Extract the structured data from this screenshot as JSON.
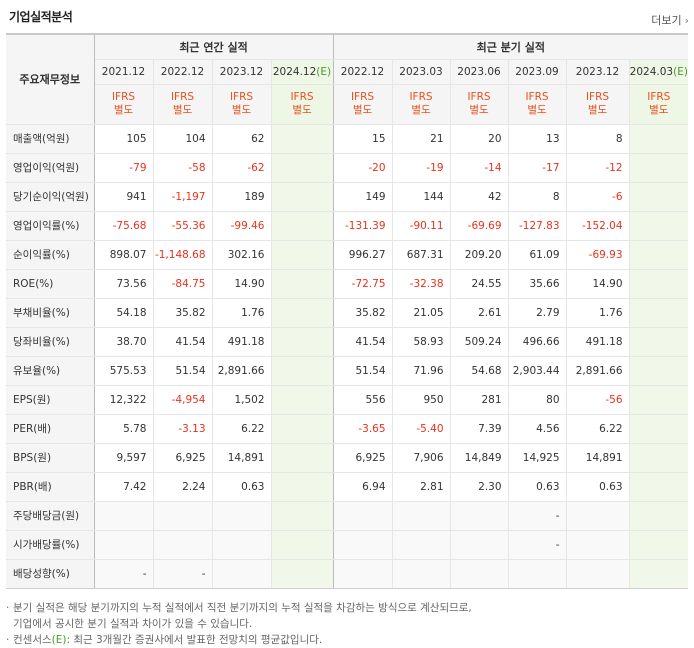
{
  "header": {
    "title": "기업실적분석",
    "more_label": "더보기",
    "more_chevron": "›"
  },
  "table": {
    "row_label_header": "주요재무정보",
    "annual_group": "최근 연간 실적",
    "quarter_group": "최근 분기 실적",
    "annual_periods": [
      "2021.12",
      "2022.12",
      "2023.12",
      "2024.12(E)"
    ],
    "quarter_periods": [
      "2022.12",
      "2023.03",
      "2023.06",
      "2023.09",
      "2023.12",
      "2024.03(E)"
    ],
    "ifrs_top": "IFRS",
    "ifrs_bottom": "별도",
    "rows": [
      {
        "label": "매출액(억원)",
        "a": [
          "105",
          "104",
          "62",
          ""
        ],
        "q": [
          "15",
          "21",
          "20",
          "13",
          "8",
          ""
        ]
      },
      {
        "label": "영업이익(억원)",
        "a": [
          "-79",
          "-58",
          "-62",
          ""
        ],
        "q": [
          "-20",
          "-19",
          "-14",
          "-17",
          "-12",
          ""
        ]
      },
      {
        "label": "당기순이익(억원)",
        "a": [
          "941",
          "-1,197",
          "189",
          ""
        ],
        "q": [
          "149",
          "144",
          "42",
          "8",
          "-6",
          ""
        ]
      },
      {
        "label": "영업이익률(%)",
        "a": [
          "-75.68",
          "-55.36",
          "-99.46",
          ""
        ],
        "q": [
          "-131.39",
          "-90.11",
          "-69.69",
          "-127.83",
          "-152.04",
          ""
        ]
      },
      {
        "label": "순이익률(%)",
        "a": [
          "898.07",
          "-1,148.68",
          "302.16",
          ""
        ],
        "q": [
          "996.27",
          "687.31",
          "209.20",
          "61.09",
          "-69.93",
          ""
        ]
      },
      {
        "label": "ROE(%)",
        "a": [
          "73.56",
          "-84.75",
          "14.90",
          ""
        ],
        "q": [
          "-72.75",
          "-32.38",
          "24.55",
          "35.66",
          "14.90",
          ""
        ]
      },
      {
        "label": "부채비율(%)",
        "a": [
          "54.18",
          "35.82",
          "1.76",
          ""
        ],
        "q": [
          "35.82",
          "21.05",
          "2.61",
          "2.79",
          "1.76",
          ""
        ]
      },
      {
        "label": "당좌비율(%)",
        "a": [
          "38.70",
          "41.54",
          "491.18",
          ""
        ],
        "q": [
          "41.54",
          "58.93",
          "509.24",
          "496.66",
          "491.18",
          ""
        ]
      },
      {
        "label": "유보율(%)",
        "a": [
          "575.53",
          "51.54",
          "2,891.66",
          ""
        ],
        "q": [
          "51.54",
          "71.96",
          "54.68",
          "2,903.44",
          "2,891.66",
          ""
        ]
      },
      {
        "label": "EPS(원)",
        "a": [
          "12,322",
          "-4,954",
          "1,502",
          ""
        ],
        "q": [
          "556",
          "950",
          "281",
          "80",
          "-56",
          ""
        ]
      },
      {
        "label": "PER(배)",
        "a": [
          "5.78",
          "-3.13",
          "6.22",
          ""
        ],
        "q": [
          "-3.65",
          "-5.40",
          "7.39",
          "4.56",
          "6.22",
          ""
        ]
      },
      {
        "label": "BPS(원)",
        "a": [
          "9,597",
          "6,925",
          "14,891",
          ""
        ],
        "q": [
          "6,925",
          "7,906",
          "14,849",
          "14,925",
          "14,891",
          ""
        ]
      },
      {
        "label": "PBR(배)",
        "a": [
          "7.42",
          "2.24",
          "0.63",
          ""
        ],
        "q": [
          "6.94",
          "2.81",
          "2.30",
          "0.63",
          "0.63",
          ""
        ]
      },
      {
        "label": "주당배당금(원)",
        "a": [
          "",
          "",
          "",
          ""
        ],
        "q": [
          "",
          "",
          "",
          "-",
          "",
          ""
        ]
      },
      {
        "label": "시가배당률(%)",
        "a": [
          "",
          "",
          "",
          ""
        ],
        "q": [
          "",
          "",
          "",
          "-",
          "",
          ""
        ]
      },
      {
        "label": "배당성향(%)",
        "a": [
          "-",
          "-",
          "",
          ""
        ],
        "q": [
          "",
          "",
          "",
          "",
          "",
          ""
        ]
      }
    ]
  },
  "notes": {
    "bullet": "·",
    "line1": "분기 실적은 해당 분기까지의 누적 실적에서 직전 분기까지의 누적 실적을 차감하는 방식으로 계산되므로,",
    "line2": "기업에서 공시한 분기 실적과 차이가 있을 수 있습니다.",
    "line3_pre": "컨센서스",
    "line3_e": "(E)",
    "line3_post": ": 최근 3개월간 증권사에서 발표한 전망치의 평균값입니다."
  },
  "colors": {
    "negative": "#e8321e",
    "ifrs": "#e8501e",
    "estimate_bg": "#eef6e6",
    "estimate_mark": "#4c9a2a"
  }
}
